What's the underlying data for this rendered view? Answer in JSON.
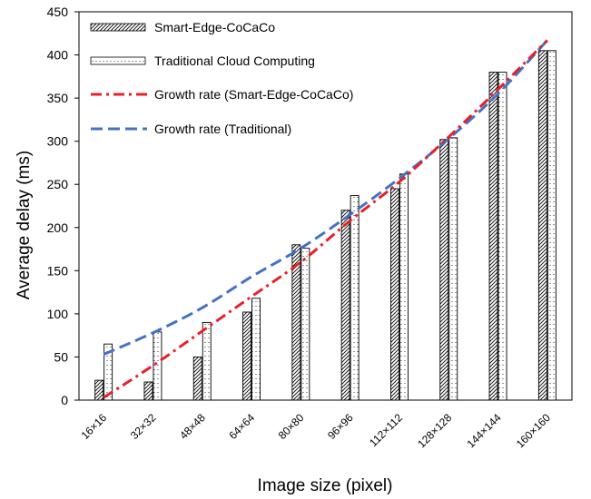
{
  "chart_data": {
    "type": "bar",
    "title": "",
    "xlabel": "Image size (pixel)",
    "ylabel": "Average delay (ms)",
    "ylim": [
      0,
      450
    ],
    "yticks": [
      0,
      50,
      100,
      150,
      200,
      250,
      300,
      350,
      400,
      450
    ],
    "grid": false,
    "legend_position": "top-left",
    "categories": [
      "16×16",
      "32×32",
      "48×48",
      "64×64",
      "80×80",
      "96×96",
      "112×112",
      "128×128",
      "144×144",
      "160×160"
    ],
    "series": [
      {
        "name": "Smart-Edge-CoCaCo",
        "kind": "bar",
        "pattern": "hatch",
        "values": [
          23,
          21,
          50,
          102,
          180,
          220,
          245,
          302,
          380,
          405
        ]
      },
      {
        "name": "Traditional Cloud Computing",
        "kind": "bar",
        "pattern": "dots",
        "values": [
          65,
          79,
          90,
          118,
          176,
          237,
          262,
          304,
          380,
          405
        ]
      },
      {
        "name": "Growth rate (Smart-Edge-CoCaCo)",
        "kind": "line",
        "style": "dash-dot",
        "color": "#e8202a",
        "values": [
          3,
          40,
          80,
          120,
          160,
          208,
          253,
          305,
          360,
          417
        ]
      },
      {
        "name": "Growth rate (Traditional)",
        "kind": "line",
        "style": "dashed",
        "color": "#4472c4",
        "values": [
          53,
          78,
          107,
          143,
          176,
          215,
          257,
          303,
          355,
          417
        ]
      }
    ]
  }
}
